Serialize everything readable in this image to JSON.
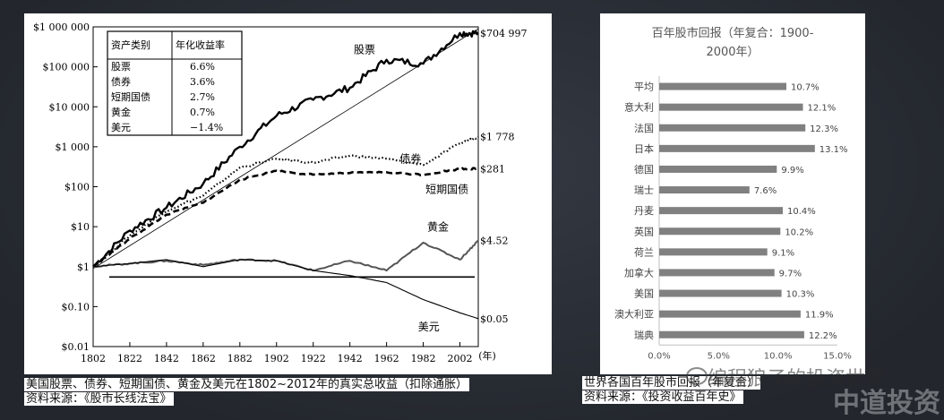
{
  "left_chart": {
    "y_ticks": [
      "$1 000 000",
      "$100 000",
      "$10 000",
      "$1 000",
      "$100",
      "$10",
      "$1",
      "$0.10",
      "$0.01"
    ],
    "x_ticks": [
      "1802",
      "1822",
      "1842",
      "1862",
      "1882",
      "1902",
      "1922",
      "1942",
      "1962",
      "1982",
      "2002"
    ],
    "x_unit": "(年)",
    "table": {
      "headers": [
        "资产类别",
        "年化收益率"
      ],
      "rows": [
        [
          "股票",
          "6.6%"
        ],
        [
          "债券",
          "3.6%"
        ],
        [
          "短期国债",
          "2.7%"
        ],
        [
          "黄金",
          "0.7%"
        ],
        [
          "美元",
          "−1.4%"
        ]
      ]
    },
    "series_labels": {
      "stocks": "股票",
      "bonds": "债券",
      "bills": "短期国债",
      "gold": "黄金",
      "dollar": "美元"
    },
    "end_values": {
      "stocks": "$704 997",
      "bonds": "$1 778",
      "bills": "$281",
      "gold": "$4.52",
      "dollar": "$0.05"
    }
  },
  "right_chart": {
    "title": "百年股市回报（年复合：1900-2000年）",
    "x_ticks": [
      "0.0%",
      "5.0%",
      "10.0%",
      "15.0%"
    ]
  },
  "captions": {
    "left_line1": "美国股票、债券、短期国债、黄金及美元在1802~2012年的真实总收益（扣除通胀）",
    "left_line2": "资料来源：《股市长线法宝》",
    "right_line1": "世界各国百年股市回报（年复合）",
    "right_line2": "资料来源：《投资收益百年史》"
  },
  "watermarks": {
    "account": "编程狼子的投资世界",
    "brand": "中道投资"
  },
  "chart_data": [
    {
      "type": "line",
      "title": "",
      "xlabel": "(年)",
      "ylabel": "",
      "scale": "log",
      "xlim": [
        1802,
        2012
      ],
      "ylim": [
        0.01,
        1000000
      ],
      "series": [
        {
          "name": "股票",
          "x": [
            1802,
            1822,
            1842,
            1862,
            1882,
            1902,
            1922,
            1942,
            1962,
            1982,
            2002,
            2012
          ],
          "values": [
            1,
            8,
            30,
            120,
            1000,
            6000,
            15000,
            30000,
            150000,
            120000,
            700000,
            704997
          ]
        },
        {
          "name": "债券",
          "x": [
            1802,
            1822,
            1842,
            1862,
            1882,
            1902,
            1922,
            1942,
            1962,
            1982,
            2002,
            2012
          ],
          "values": [
            1,
            6,
            25,
            60,
            300,
            500,
            400,
            600,
            500,
            350,
            1200,
            1778
          ]
        },
        {
          "name": "短期国债",
          "x": [
            1802,
            1822,
            1842,
            1862,
            1882,
            1902,
            1922,
            1942,
            1962,
            1982,
            2002,
            2012
          ],
          "values": [
            1,
            5,
            20,
            40,
            150,
            250,
            200,
            220,
            230,
            200,
            280,
            281
          ]
        },
        {
          "name": "黄金",
          "x": [
            1802,
            1822,
            1842,
            1862,
            1882,
            1902,
            1922,
            1942,
            1962,
            1982,
            2002,
            2012
          ],
          "values": [
            1,
            1.2,
            1.4,
            1.1,
            1.5,
            1.4,
            0.8,
            1.4,
            0.8,
            4,
            1.5,
            4.52
          ]
        },
        {
          "name": "美元",
          "x": [
            1802,
            1822,
            1842,
            1862,
            1882,
            1902,
            1922,
            1942,
            1962,
            1982,
            2002,
            2012
          ],
          "values": [
            1,
            1.2,
            1.5,
            1.0,
            1.5,
            1.4,
            0.8,
            0.6,
            0.4,
            0.15,
            0.07,
            0.05
          ]
        }
      ]
    },
    {
      "type": "bar",
      "orientation": "horizontal",
      "title": "百年股市回报（年复合：1900-2000年）",
      "categories": [
        "平均",
        "意大利",
        "法国",
        "日本",
        "德国",
        "瑞士",
        "丹麦",
        "英国",
        "荷兰",
        "加拿大",
        "美国",
        "澳大利亚",
        "瑞典"
      ],
      "values": [
        10.7,
        12.1,
        12.3,
        13.1,
        9.9,
        7.6,
        10.4,
        10.2,
        9.1,
        9.7,
        10.3,
        11.9,
        12.2
      ],
      "labels": [
        "10.7%",
        "12.1%",
        "12.3%",
        "13.1%",
        "9.9%",
        "7.6%",
        "10.4%",
        "10.2%",
        "9.1%",
        "9.7%",
        "10.3%",
        "11.9%",
        "12.2%"
      ],
      "xlim": [
        0,
        15
      ],
      "color": "#808080"
    }
  ]
}
